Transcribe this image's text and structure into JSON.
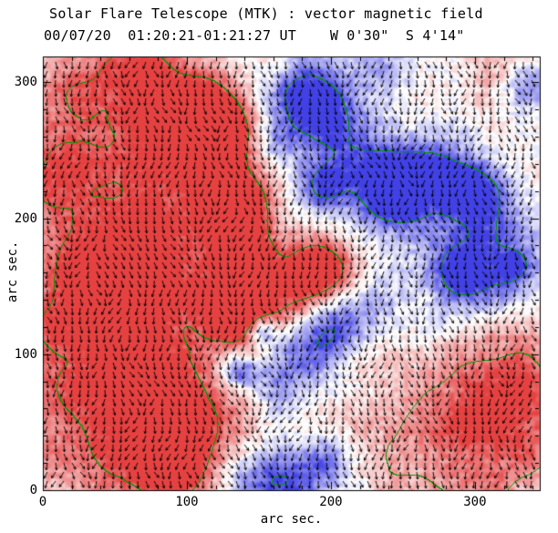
{
  "header": {
    "title": "Solar Flare Telescope (MTK) : vector magnetic field",
    "obs_line": "00/07/20  01:20:21-01:21:27 UT    W 0'30\"  S 4'14\""
  },
  "axes": {
    "xlabel": "arc sec.",
    "ylabel": "arc sec."
  },
  "chart_data": {
    "type": "heatmap",
    "title": "Solar Flare Telescope (MTK) : vector magnetic field",
    "subtitle": "00/07/20  01:20:21-01:21:27 UT    W 0'30\"  S 4'14\"",
    "xlabel": "arc sec.",
    "ylabel": "arc sec.",
    "x_range": [
      0,
      345
    ],
    "y_range": [
      0,
      319
    ],
    "x_tick_values": [
      0,
      100,
      200,
      300
    ],
    "y_tick_values": [
      0,
      100,
      200,
      300
    ],
    "minor_tick_step": 20,
    "grid": false,
    "encoding": {
      "red_regions": "positive field patches",
      "blue_regions": "negative field patches",
      "black_arrows": "transverse field vectors on regular grid",
      "green_lines": "field strength contours"
    },
    "palette": {
      "positive": "#e64141",
      "negative": "#4141e6",
      "contour": "#00a000",
      "arrows": "#000000",
      "background": "#ffffff"
    },
    "contour_level": 0.65,
    "color_gain": 1.35,
    "noise": {
      "high_freq_scale": 3.5,
      "high_freq_amp": 0.15,
      "low_freq_scale": 24,
      "low_freq_amp": 0.1
    },
    "arrows": {
      "dx": 9,
      "dy": 10,
      "length": 8,
      "head": 3
    },
    "sources": [
      [
        65,
        193,
        50,
        0.62
      ],
      [
        46,
        140,
        45,
        0.58
      ],
      [
        122,
        247,
        22,
        0.85
      ],
      [
        116,
        280,
        18,
        0.75
      ],
      [
        78,
        277,
        28,
        0.6
      ],
      [
        133,
        205,
        16,
        1.1
      ],
      [
        140,
        168,
        14,
        1.05
      ],
      [
        189,
        160,
        17,
        1.05
      ],
      [
        160,
        130,
        22,
        0.7
      ],
      [
        132,
        130,
        15,
        0.65
      ],
      [
        52,
        52,
        55,
        0.65
      ],
      [
        97,
        39,
        30,
        0.6
      ],
      [
        87,
        17,
        11,
        1.1
      ],
      [
        15,
        297,
        26,
        0.45
      ],
      [
        7,
        234,
        22,
        0.4
      ],
      [
        274,
        32,
        50,
        0.42
      ],
      [
        325,
        46,
        35,
        0.4
      ],
      [
        321,
        86,
        30,
        0.38
      ],
      [
        321,
        311,
        20,
        0.4
      ],
      [
        71,
        314,
        25,
        0.5
      ],
      [
        160,
        314,
        12,
        0.4
      ],
      [
        179,
        297,
        20,
        -0.75
      ],
      [
        195,
        274,
        16,
        -0.6
      ],
      [
        220,
        237,
        22,
        -0.65
      ],
      [
        244,
        215,
        16,
        -0.95
      ],
      [
        268,
        234,
        18,
        -0.7
      ],
      [
        299,
        219,
        16,
        -0.9
      ],
      [
        335,
        297,
        13,
        -0.6
      ],
      [
        299,
        166,
        28,
        -0.75
      ],
      [
        290,
        161,
        10,
        -0.45
      ],
      [
        326,
        164,
        9,
        -0.45
      ],
      [
        192,
        223,
        13,
        -0.5
      ],
      [
        179,
        103,
        20,
        -0.7
      ],
      [
        198,
        119,
        14,
        -0.55
      ],
      [
        152,
        117,
        8,
        -0.85
      ],
      [
        136,
        87,
        9,
        -0.8
      ],
      [
        147,
        13,
        18,
        -0.6
      ],
      [
        173,
        5,
        15,
        -0.55
      ],
      [
        198,
        22,
        14,
        -0.55
      ],
      [
        220,
        133,
        15,
        -0.35
      ],
      [
        160,
        257,
        12,
        -0.45
      ],
      [
        236,
        311,
        15,
        -0.35
      ],
      [
        160,
        72,
        13,
        -0.4
      ]
    ],
    "contour_boost": [
      [
        274,
        30,
        45,
        0.28
      ],
      [
        325,
        46,
        32,
        0.28
      ],
      [
        215,
        15,
        30,
        0.2
      ]
    ]
  }
}
